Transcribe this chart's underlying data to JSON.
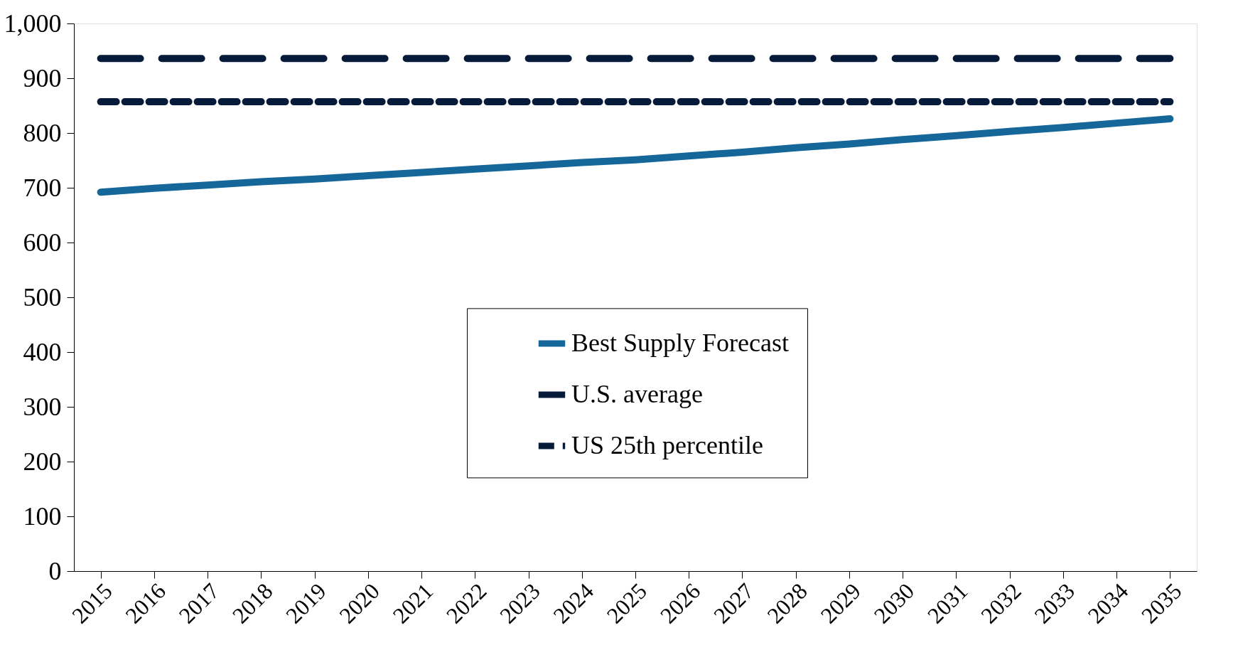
{
  "chart_data": {
    "type": "line",
    "categories": [
      "2015",
      "2016",
      "2017",
      "2018",
      "2019",
      "2020",
      "2021",
      "2022",
      "2023",
      "2024",
      "2025",
      "2026",
      "2027",
      "2028",
      "2029",
      "2030",
      "2031",
      "2032",
      "2033",
      "2034",
      "2035"
    ],
    "series": [
      {
        "name": "Best Supply Forecast",
        "color": "#15679a",
        "line_style": "solid",
        "values": [
          692,
          699,
          705,
          711,
          716,
          722,
          728,
          734,
          740,
          746,
          751,
          758,
          765,
          773,
          780,
          788,
          795,
          803,
          810,
          818,
          826
        ]
      },
      {
        "name": "U.S. average",
        "color": "#061a3a",
        "line_style": "dashed",
        "values": [
          936,
          936,
          936,
          936,
          936,
          936,
          936,
          936,
          936,
          936,
          936,
          936,
          936,
          936,
          936,
          936,
          936,
          936,
          936,
          936,
          936
        ]
      },
      {
        "name": "US 25th percentile",
        "color": "#061a3a",
        "line_style": "dotted",
        "values": [
          857,
          857,
          857,
          857,
          857,
          857,
          857,
          857,
          857,
          857,
          857,
          857,
          857,
          857,
          857,
          857,
          857,
          857,
          857,
          857,
          857
        ]
      }
    ],
    "ylim": [
      0,
      1000
    ],
    "yticks": [
      0,
      100,
      200,
      300,
      400,
      500,
      600,
      700,
      800,
      900,
      {
        "value": 1000,
        "label": "1,000"
      }
    ],
    "grid": false,
    "legend": "center"
  }
}
